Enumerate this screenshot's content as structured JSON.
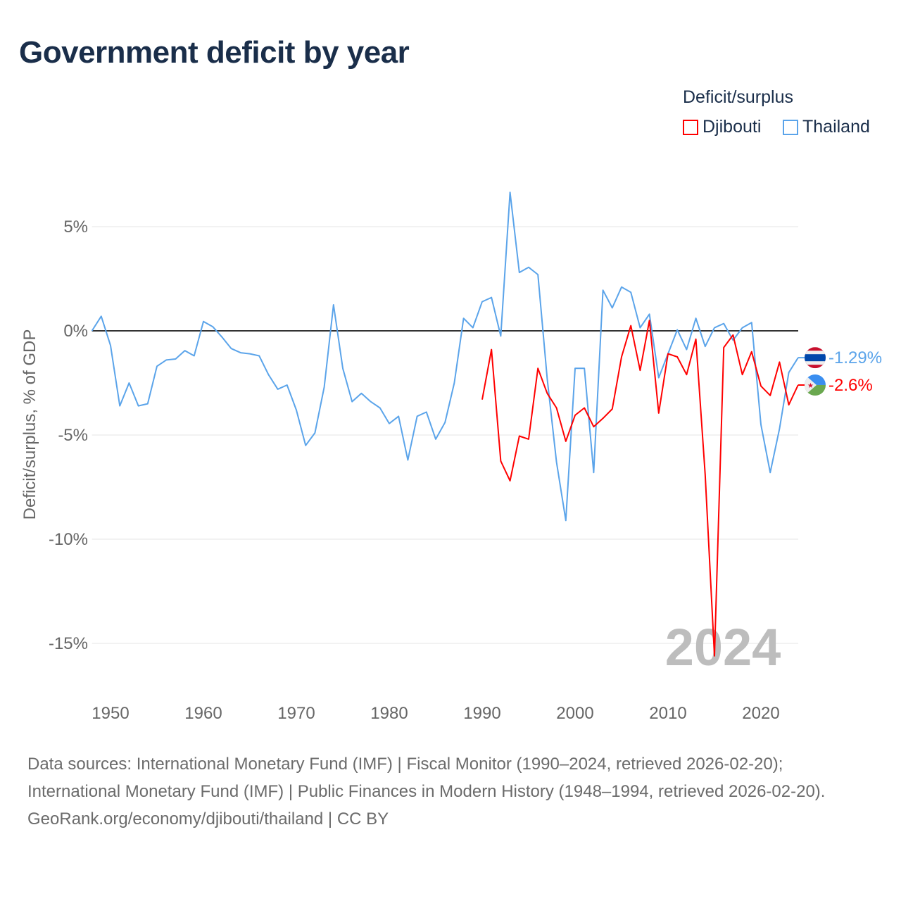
{
  "title": "Government deficit by year",
  "legend": {
    "title": "Deficit/surplus",
    "items": [
      {
        "name": "Djibouti",
        "color": "#ff0000"
      },
      {
        "name": "Thailand",
        "color": "#5ba4ea"
      }
    ]
  },
  "source": {
    "line1": "Data sources: International Monetary Fund (IMF) | Fiscal Monitor (1990–2024, retrieved 2026-02-20); International Monetary Fund (IMF) | Public Finances in Modern History (1948–1994, retrieved 2026-02-20).",
    "line2": "GeoRank.org/economy/djibouti/thailand | CC BY"
  },
  "chart_data": {
    "type": "line",
    "title": "Government deficit by year",
    "ylabel": "Deficit/surplus, % of GDP",
    "xlabel": "",
    "xlim": [
      1948,
      2024
    ],
    "ylim": [
      -17,
      8
    ],
    "x_ticks": [
      1950,
      1960,
      1970,
      1980,
      1990,
      2000,
      2010,
      2020
    ],
    "y_ticks": [
      {
        "v": 5,
        "label": "5%"
      },
      {
        "v": 0,
        "label": "0%"
      },
      {
        "v": -5,
        "label": "-5%"
      },
      {
        "v": -10,
        "label": "-10%"
      },
      {
        "v": -15,
        "label": "-15%"
      }
    ],
    "year_watermark": "2024",
    "series": [
      {
        "name": "Thailand",
        "color": "#5ba4ea",
        "end_label": "-1.29%",
        "start": 1948,
        "values": [
          0.0,
          0.7,
          -0.7,
          -3.6,
          -2.5,
          -3.6,
          -3.5,
          -1.7,
          -1.4,
          -1.35,
          -0.95,
          -1.2,
          0.45,
          0.2,
          -0.3,
          -0.85,
          -1.05,
          -1.1,
          -1.2,
          -2.1,
          -2.8,
          -2.6,
          -3.8,
          -5.5,
          -4.9,
          -2.7,
          1.25,
          -1.8,
          -3.4,
          -3.0,
          -3.4,
          -3.7,
          -4.45,
          -4.1,
          -6.2,
          -4.1,
          -3.9,
          -5.2,
          -4.4,
          -2.5,
          0.6,
          0.15,
          1.4,
          1.6,
          -0.25,
          6.65,
          2.8,
          3.05,
          2.7,
          -2.3,
          -6.3,
          -9.1,
          -1.8,
          -1.8,
          -6.8,
          1.95,
          1.1,
          2.1,
          1.85,
          0.15,
          0.8,
          -2.25,
          -1.1,
          0.05,
          -0.9,
          0.6,
          -0.75,
          0.15,
          0.35,
          -0.45,
          0.15,
          0.4,
          -4.5,
          -6.8,
          -4.7,
          -2.0,
          -1.29
        ]
      },
      {
        "name": "Djibouti",
        "color": "#ff0000",
        "end_label": "-2.6%",
        "start": 1990,
        "values": [
          -3.3,
          -0.9,
          -6.25,
          -7.2,
          -5.05,
          -5.2,
          -1.8,
          -3.0,
          -3.7,
          -5.3,
          -4.05,
          -3.7,
          -4.6,
          -4.2,
          -3.75,
          -1.25,
          0.25,
          -1.9,
          0.5,
          -3.95,
          -1.1,
          -1.25,
          -2.1,
          -0.4,
          -6.9,
          -15.6,
          -0.8,
          -0.2,
          -2.1,
          -1.0,
          -2.65,
          -3.1,
          -1.5,
          -3.55,
          -2.6
        ]
      }
    ]
  }
}
